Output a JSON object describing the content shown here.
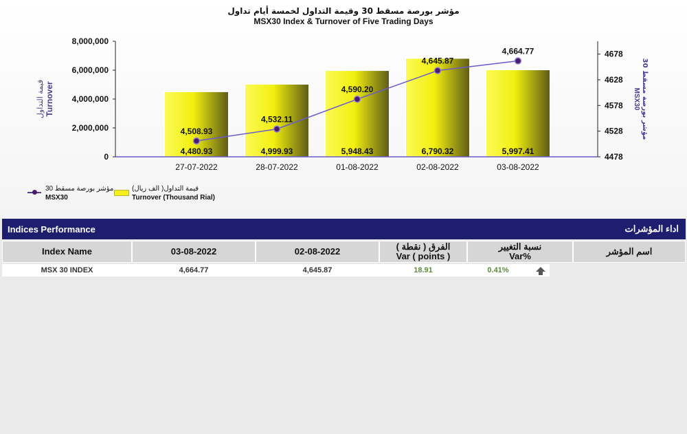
{
  "chart_data": {
    "type": "bar+line",
    "title_ar": "مؤشر بورصة مسقط 30 وقيمة التداول لخمسة أيام تداول",
    "title": "MSX30 Index & Turnover of Five Trading Days",
    "categories": [
      "27-07-2022",
      "28-07-2022",
      "01-08-2022",
      "02-08-2022",
      "03-08-2022"
    ],
    "series": [
      {
        "name": "Turnover (Thousand Rial)",
        "name_ar": "قيمة التداول( الف ريال)",
        "type": "bar",
        "axis": "left",
        "values": [
          4480.93,
          4999.93,
          5948.43,
          6790.32,
          5997.41
        ],
        "labels": [
          "4,480.93",
          "4,999.93",
          "5,948.43",
          "6,790.32",
          "5,997.41"
        ],
        "color": "#f2ef1a"
      },
      {
        "name": "MSX30",
        "name_ar": "مؤشر بورصة مسقط 30",
        "type": "line",
        "axis": "right",
        "values": [
          4508.93,
          4532.11,
          4590.2,
          4645.87,
          4664.77
        ],
        "labels": [
          "4,508.93",
          "4,532.11",
          "4,590.20",
          "4,645.87",
          "4,664.77"
        ],
        "color": "#6a5acd"
      }
    ],
    "left_axis": {
      "label_ar": "قيمة التداول",
      "label": "Turnover",
      "ylim": [
        0,
        8000000
      ],
      "ticks": [
        0,
        2000000,
        4000000,
        6000000,
        8000000
      ],
      "tick_labels": [
        "0",
        "2,000,000",
        "4,000,000",
        "6,000,000",
        "8,000,000"
      ]
    },
    "right_axis": {
      "label_ar": "مؤشر بورصة مسقط 30",
      "label": "MSX30",
      "ylim": [
        4478,
        4703
      ],
      "ticks": [
        4478,
        4528,
        4578,
        4628,
        4678
      ],
      "tick_labels": [
        "4478",
        "4528",
        "4578",
        "4628",
        "4678"
      ]
    },
    "legend_position": "bottom-left",
    "grid": false
  },
  "table": {
    "title": "Indices Performance",
    "title_ar": "اداء المؤشرات",
    "columns": {
      "name": "Index Name",
      "d1": "03-08-2022",
      "d2": "02-08-2022",
      "var_points_ar": "الفرق ( نقطة )",
      "var_points": "Var ( points )",
      "var_pct_ar": "نسبة التغيير",
      "var_pct": "Var%",
      "name_ar": "اسم المؤشر"
    },
    "rows": [
      {
        "name": "MSX 30 INDEX",
        "d1": "4,664.77",
        "d2": "4,645.87",
        "var_points": "18.91",
        "var_pct": "0.41%",
        "trend_icon": "up-arrow-icon"
      }
    ]
  },
  "colors": {
    "header_bg": "#1e1e6e",
    "positive": "#5c8a3a",
    "bar_fill": "#f2ef1a",
    "line": "#6a5acd",
    "marker": "#4b1d6f"
  }
}
